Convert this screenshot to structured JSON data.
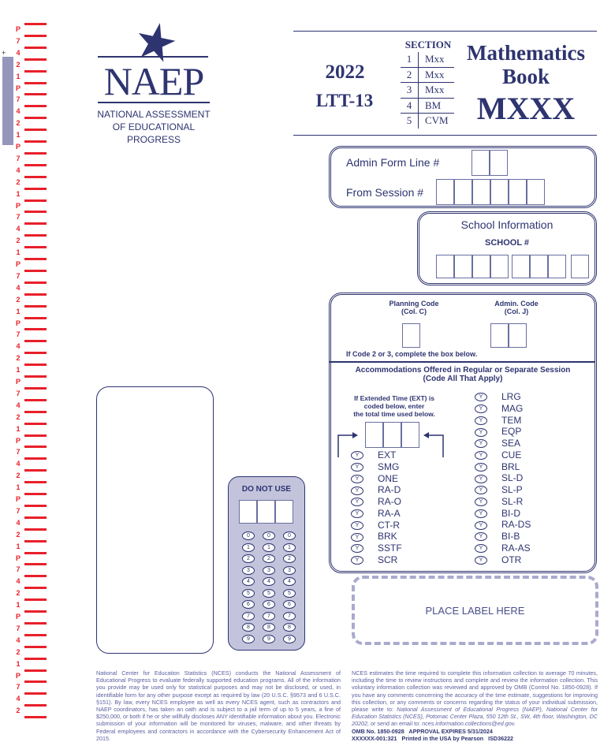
{
  "margin_strip": {
    "labels": [
      "P",
      "7",
      "4",
      "2",
      "1"
    ],
    "color": "#e8202a"
  },
  "logo": {
    "wordmark": "NAEP",
    "line1": "NATIONAL ASSESSMENT",
    "line2": "OF EDUCATIONAL",
    "line3": "PROGRESS"
  },
  "header": {
    "year": "2022",
    "assessment": "LTT-13",
    "section_label": "SECTION",
    "sections": [
      {
        "num": "1",
        "code": "Mxx"
      },
      {
        "num": "2",
        "code": "Mxx"
      },
      {
        "num": "3",
        "code": "Mxx"
      },
      {
        "num": "4",
        "code": "BM"
      },
      {
        "num": "5",
        "code": "CVM"
      }
    ],
    "subject": "Mathematics",
    "book_label": "Book",
    "book_id": "MXXX"
  },
  "admin": {
    "form_line_label": "Admin Form Line #",
    "session_label": "From Session #"
  },
  "school": {
    "title": "School Information",
    "number_label": "SCHOOL #"
  },
  "codes": {
    "planning_label": "Planning Code",
    "planning_col": "(Col. C)",
    "admin_label": "Admin. Code",
    "admin_col": "(Col. J)",
    "instruction": "If Code 2 or 3, complete the box below."
  },
  "accommodations": {
    "title": "Accommodations Offered in Regular or Separate Session",
    "subtitle": "(Code All That Apply)",
    "ext_note1": "If Extended Time (EXT) is",
    "ext_note2": "coded below, enter",
    "ext_note3": "the total time used below.",
    "bubble": "Y",
    "left": [
      "EXT",
      "SMG",
      "ONE",
      "RA-D",
      "RA-O",
      "RA-A",
      "CT-R",
      "BRK",
      "SSTF",
      "SCR"
    ],
    "right": [
      "LRG",
      "MAG",
      "TEM",
      "EQP",
      "SEA",
      "CUE",
      "BRL",
      "SL-D",
      "SL-P",
      "SL-R",
      "BI-D",
      "RA-DS",
      "BI-B",
      "RA-AS",
      "OTR"
    ]
  },
  "do_not_use": {
    "title": "DO NOT USE",
    "digits": [
      "0",
      "1",
      "2",
      "3",
      "4",
      "5",
      "6",
      "7",
      "8",
      "9"
    ]
  },
  "label_area": {
    "text": "PLACE LABEL HERE"
  },
  "footer": {
    "left": "National Center for Education Statistics (NCES) conducts the National Assessment of Educational Progress to evaluate federally supported education programs. All of the information you provide may be used only for statistical purposes and may not be disclosed, or used, in identifiable form for any other purpose except as required by law (20 U.S.C. §9573 and 6 U.S.C. §151). By law, every NCES employee as well as every NCES agent, such as contractors and NAEP coordinators, has taken an oath and is subject to a jail term of up to 5 years, a fine of $250,000, or both if he or she willfully discloses ANY identifiable information about you. Electronic submission of your information will be monitored for viruses, malware, and other threats by Federal employees and contractors in accordance with the Cybersecurity Enhancement Act of 2015.",
    "right": "NCES estimates the time required to complete this information collection to average 70 minutes, including the time to review instructions and complete and review the information collection. This voluntary information collection was reviewed and approved by OMB (Control No. 1850-0928). If you have any comments concerning the accuracy of the time estimate, suggestions for improving this collection, or any comments or concerns regarding the status of your individual submission, please write to:",
    "right_address": "National Assessment of Educational Progress (NAEP), National Center for Education Statistics (NCES), Potomac Center Plaza, 550 12th St., SW, 4th floor, Washington, DC 20202,",
    "right_or": "or send an email to:",
    "right_email": "nces.information.collections@ed.gov.",
    "omb": "OMB No. 1850-0928   APPROVAL EXPIRES 5/31/2024",
    "print": "XXXXXX-001:321   Printed in the USA by Pearson   ISD36222"
  },
  "colors": {
    "navy": "#2e3470",
    "lavender": "#c3c4dc",
    "red": "#e8202a"
  }
}
